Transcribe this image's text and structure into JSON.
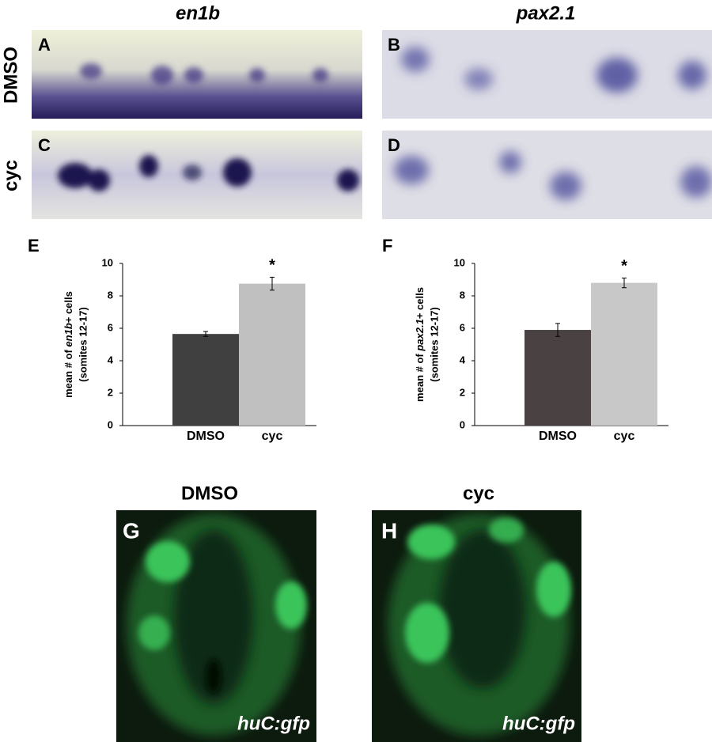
{
  "column_titles": [
    "en1b",
    "pax2.1"
  ],
  "row_labels": [
    "DMSO",
    "cyc"
  ],
  "panel_labels": [
    "A",
    "B",
    "C",
    "D",
    "G",
    "H"
  ],
  "bottom_titles": [
    "DMSO",
    "cyc"
  ],
  "reporter": "huC:gfp",
  "chart_data": [
    {
      "type": "bar",
      "panel": "E",
      "ylabel": {
        "prefix": "mean # of ",
        "gene": "en1b",
        "suffix": "+ cells",
        "line2": "(somites 12-17)"
      },
      "categories": [
        "DMSO",
        "cyc"
      ],
      "values": [
        5.65,
        8.75
      ],
      "errors": [
        0.15,
        0.4
      ],
      "colors": [
        "#404040",
        "#c0c0c0"
      ],
      "annotation": "*",
      "ylim": [
        0,
        10
      ],
      "yticks": [
        0,
        2,
        4,
        6,
        8,
        10
      ]
    },
    {
      "type": "bar",
      "panel": "F",
      "ylabel": {
        "prefix": "mean # of ",
        "gene": "pax2.1",
        "suffix": "+ cells",
        "line2": "(somites 12-17)"
      },
      "categories": [
        "DMSO",
        "cyc"
      ],
      "values": [
        5.9,
        8.8
      ],
      "errors": [
        0.4,
        0.3
      ],
      "colors": [
        "#4a4242",
        "#c8c8c8"
      ],
      "annotation": "*",
      "ylim": [
        0,
        10
      ],
      "yticks": [
        0,
        2,
        4,
        6,
        8,
        10
      ]
    }
  ]
}
